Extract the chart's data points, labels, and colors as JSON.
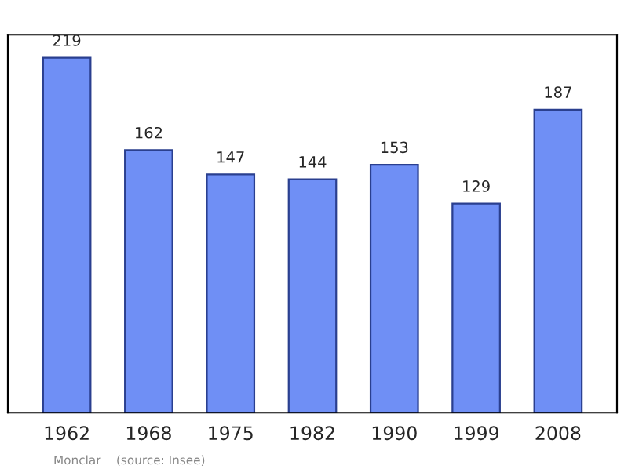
{
  "chart_data": {
    "type": "bar",
    "categories": [
      "1962",
      "1968",
      "1975",
      "1982",
      "1990",
      "1999",
      "2008"
    ],
    "values": [
      219,
      162,
      147,
      144,
      153,
      129,
      187
    ],
    "color": "#6f8ff5",
    "data_labels": true,
    "grid": false,
    "legend": false,
    "annotations": [
      "Monclar    (source: Insee)"
    ]
  }
}
